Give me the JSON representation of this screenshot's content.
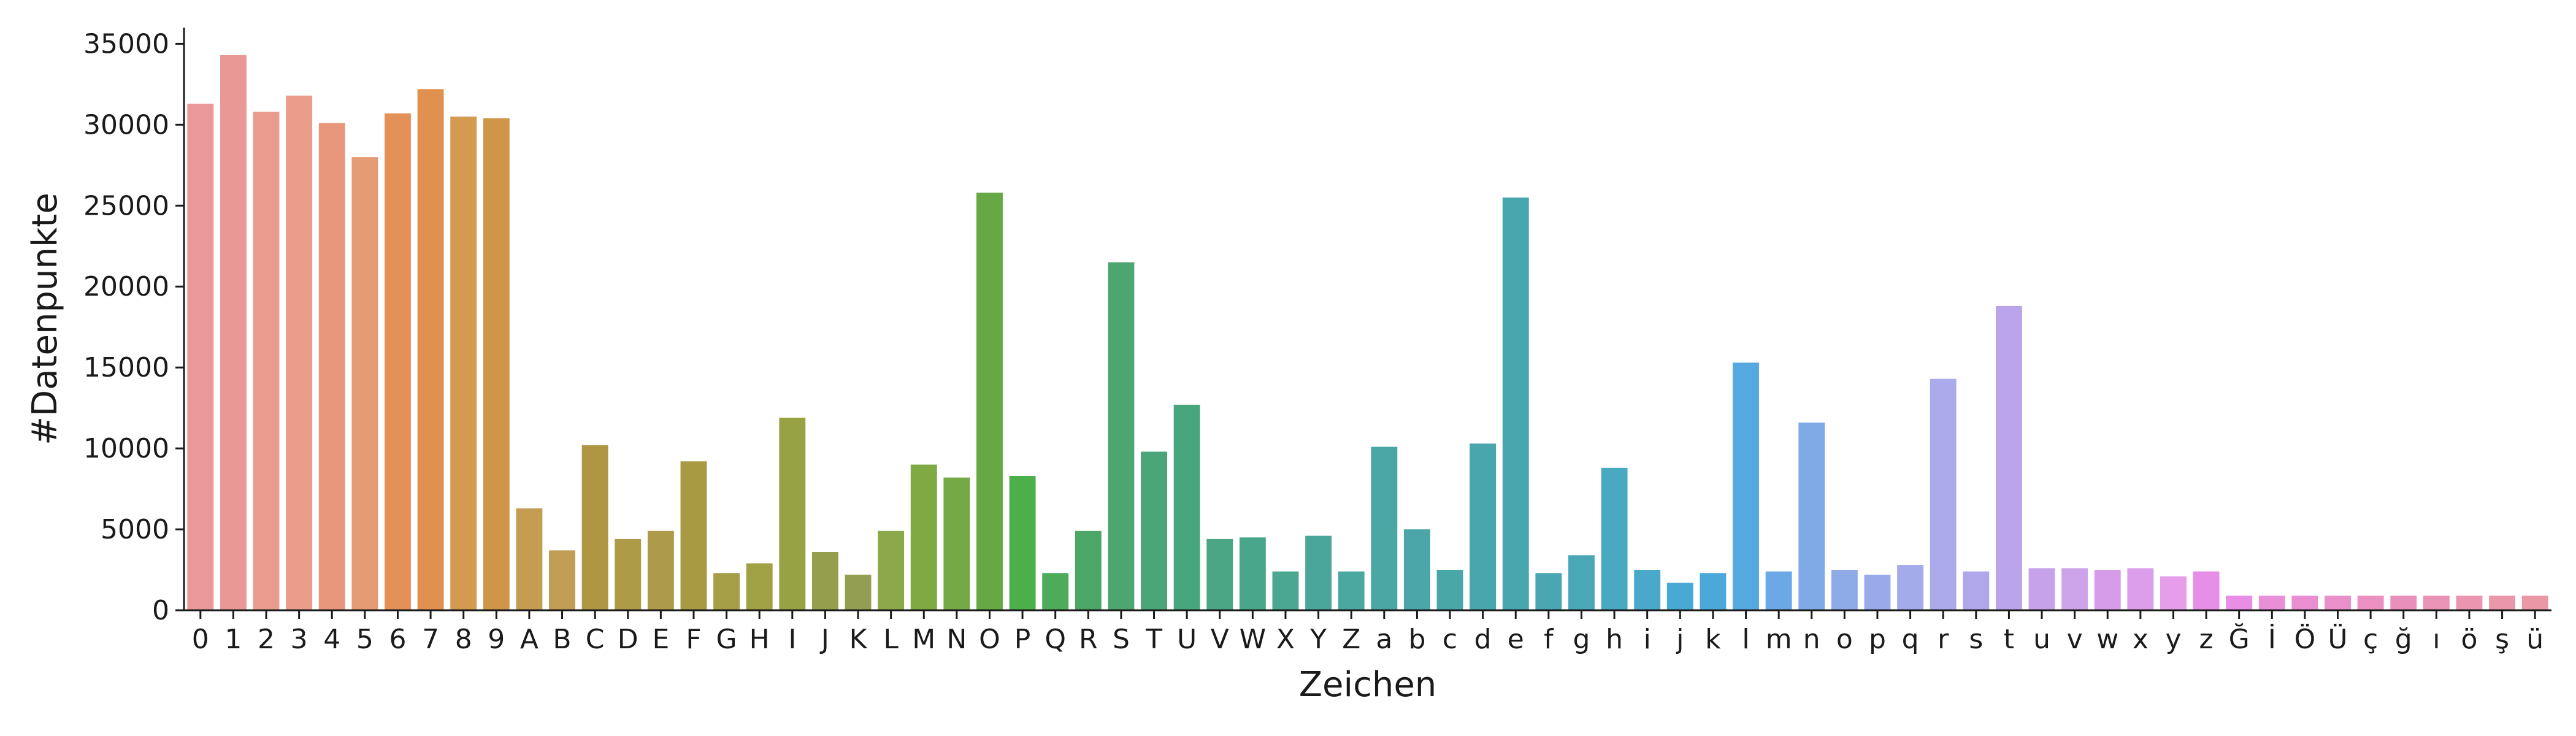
{
  "chart_data": {
    "type": "bar",
    "xlabel": "Zeichen",
    "ylabel": "#Datenpunkte",
    "ylim": [
      0,
      36000
    ],
    "yticks": [
      0,
      5000,
      10000,
      15000,
      20000,
      25000,
      30000,
      35000
    ],
    "grid": false,
    "categories": [
      "0",
      "1",
      "2",
      "3",
      "4",
      "5",
      "6",
      "7",
      "8",
      "9",
      "A",
      "B",
      "C",
      "D",
      "E",
      "F",
      "G",
      "H",
      "I",
      "J",
      "K",
      "L",
      "M",
      "N",
      "O",
      "P",
      "Q",
      "R",
      "S",
      "T",
      "U",
      "V",
      "W",
      "X",
      "Y",
      "Z",
      "a",
      "b",
      "c",
      "d",
      "e",
      "f",
      "g",
      "h",
      "i",
      "j",
      "k",
      "l",
      "m",
      "n",
      "o",
      "p",
      "q",
      "r",
      "s",
      "t",
      "u",
      "v",
      "w",
      "x",
      "y",
      "z",
      "Ğ",
      "İ",
      "Ö",
      "Ü",
      "ç",
      "ğ",
      "ı",
      "ö",
      "ş",
      "ü"
    ],
    "values": [
      31300,
      34300,
      30800,
      31800,
      30100,
      28000,
      30700,
      32200,
      30500,
      30400,
      6300,
      3700,
      10200,
      4400,
      4900,
      9200,
      2300,
      2900,
      11900,
      3600,
      2200,
      4900,
      9000,
      8200,
      25800,
      8300,
      2300,
      4900,
      21500,
      9800,
      12700,
      4400,
      4500,
      2400,
      4600,
      2400,
      10100,
      5000,
      2500,
      10300,
      25500,
      2300,
      3400,
      8800,
      2500,
      1700,
      2300,
      15300,
      2400,
      11600,
      2500,
      2200,
      2800,
      14300,
      2400,
      18800,
      2600,
      2600,
      2500,
      2600,
      2100,
      2400,
      900,
      900,
      900,
      900,
      900,
      900,
      900,
      900,
      900,
      900
    ],
    "colors": [
      "#ea9999",
      "#e99896",
      "#e99b8e",
      "#e99c88",
      "#e8977c",
      "#e59b73",
      "#e39157",
      "#e1914f",
      "#d49a4f",
      "#cf964a",
      "#c49c52",
      "#c09c55",
      "#ae9643",
      "#ad9b48",
      "#ad9a4a",
      "#a89a43",
      "#a59e47",
      "#a0a045",
      "#96a244",
      "#949e4d",
      "#949e52",
      "#8ca84a",
      "#7ea943",
      "#74a945",
      "#66a843",
      "#4cb04a",
      "#4cac58",
      "#4ca766",
      "#4da56f",
      "#4aa578",
      "#47a67b",
      "#4aa684",
      "#4aa68a",
      "#4ba78f",
      "#4aa69b",
      "#4aa8a0",
      "#4ba7a3",
      "#4aa6a8",
      "#49a7a8",
      "#4aa6ad",
      "#48a6ae",
      "#4aa6b2",
      "#4aa7b6",
      "#49a9c0",
      "#4aa9ca",
      "#48a9d4",
      "#4aa9da",
      "#55a9e0",
      "#6aa9e6",
      "#80aae6",
      "#8eabe8",
      "#99aaea",
      "#a3abea",
      "#abaaea",
      "#b0a7ea",
      "#bba5ea",
      "#c5a2ea",
      "#cda4ea",
      "#d69cea",
      "#dc9eea",
      "#e69eea",
      "#e78ee9",
      "#e88ee6",
      "#e88fd8",
      "#e98ed0",
      "#e98fc9",
      "#ea91c1",
      "#e98fbb",
      "#e993b7",
      "#ea96b1",
      "#ea97ab",
      "#ea98a5"
    ]
  }
}
